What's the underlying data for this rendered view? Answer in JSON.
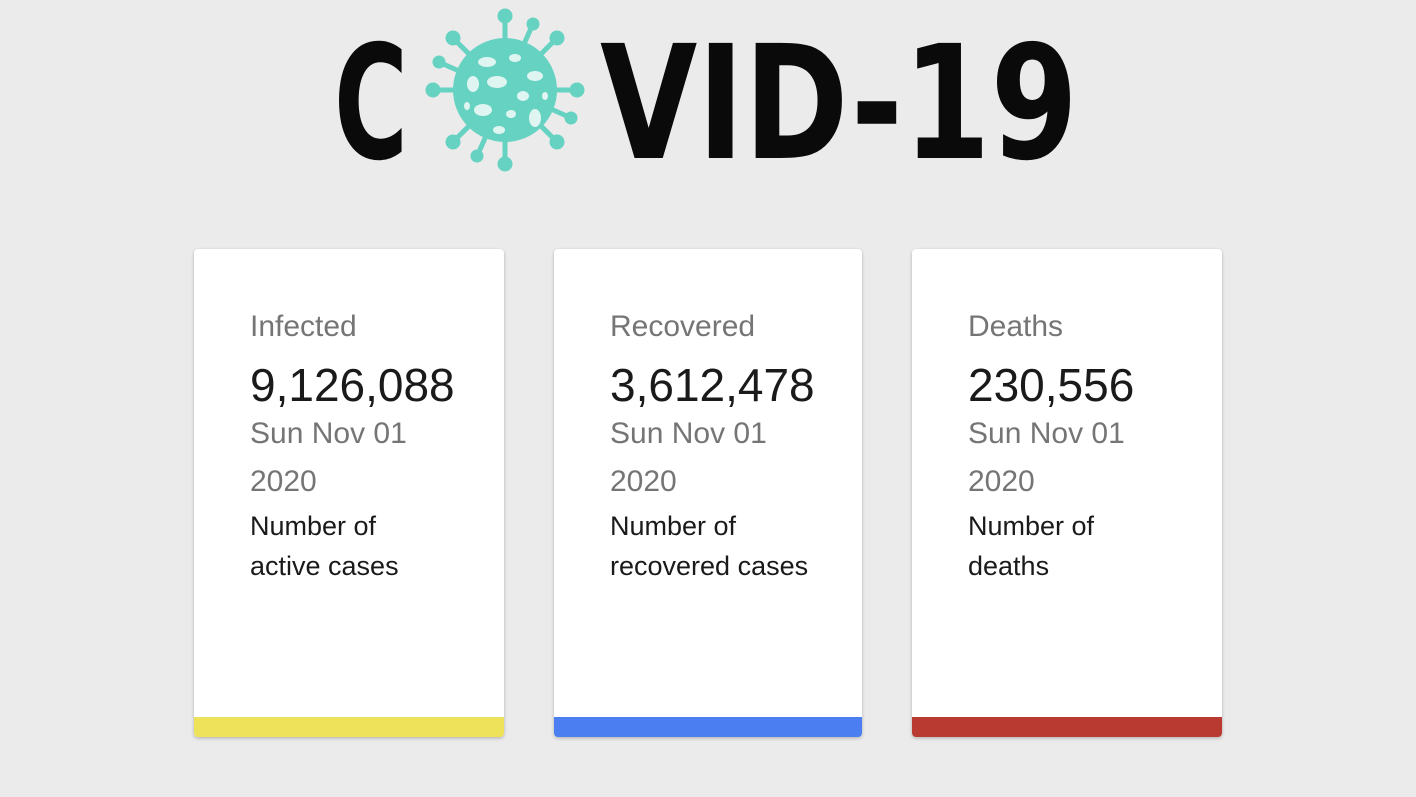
{
  "logo": {
    "text_left": "C",
    "text_right": "VID-19",
    "virus_color": "#66d2c2",
    "text_color": "#0a0a0a"
  },
  "cards": [
    {
      "title": "Infected",
      "value": "9,126,088",
      "date": "Sun Nov 01 2020",
      "description": "Number of active cases",
      "bar_color": "#ede25a"
    },
    {
      "title": "Recovered",
      "value": "3,612,478",
      "date": "Sun Nov 01 2020",
      "description": "Number of recovered cases",
      "bar_color": "#4b7ef0"
    },
    {
      "title": "Deaths",
      "value": "230,556",
      "date": "Sun Nov 01 2020",
      "description": "Number of deaths",
      "bar_color": "#b83a30"
    }
  ]
}
